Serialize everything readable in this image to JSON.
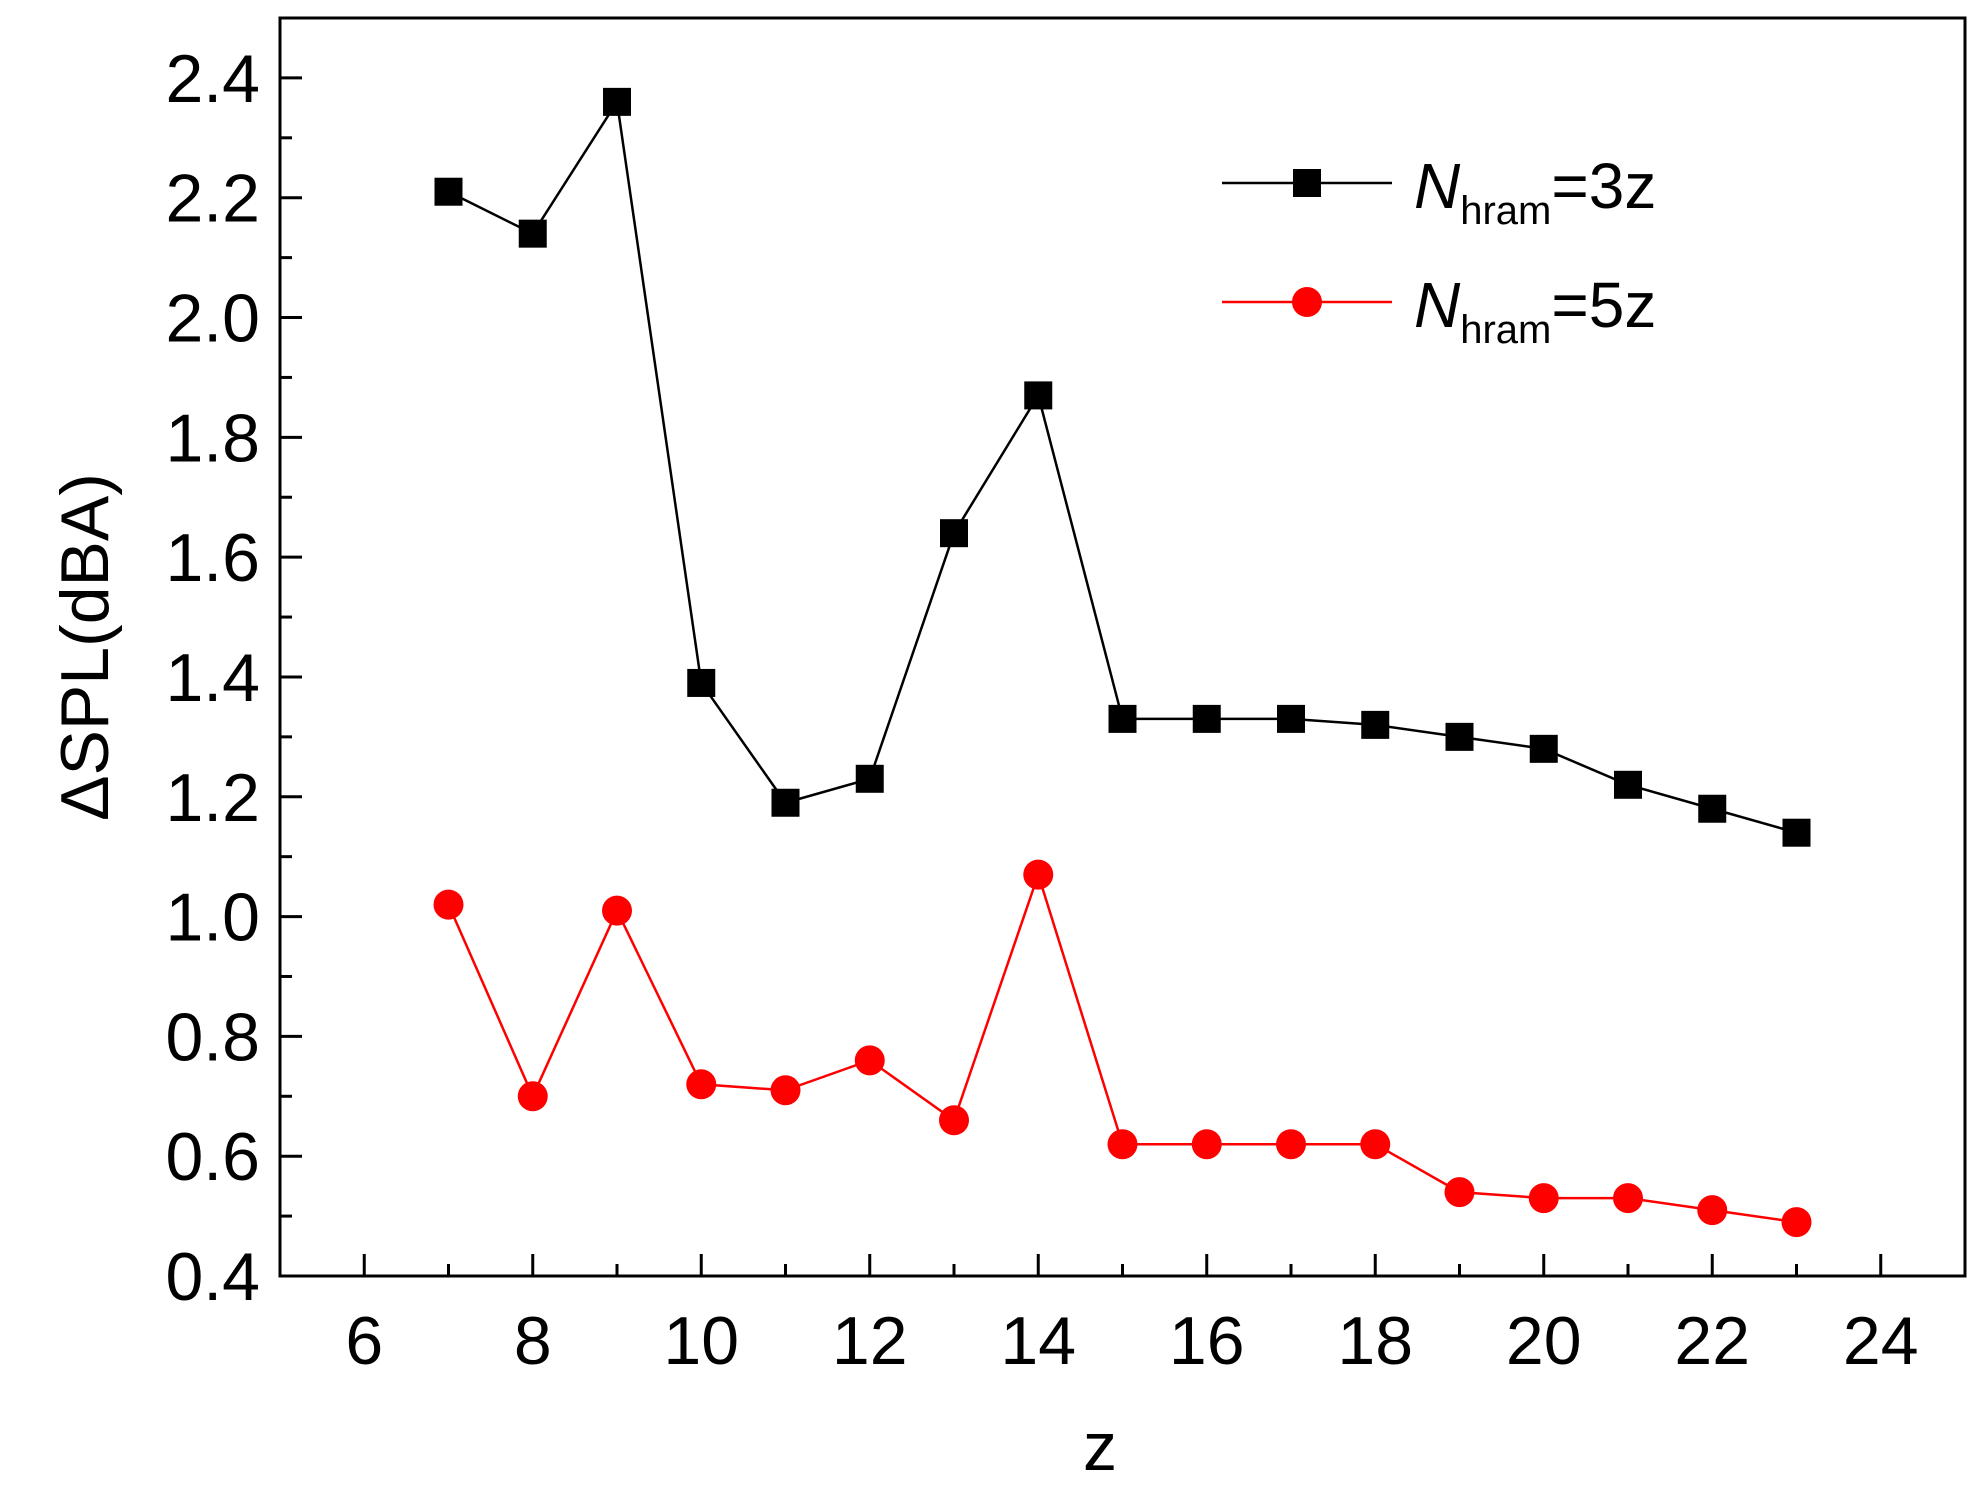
{
  "chart_data": {
    "type": "line",
    "xlabel": "z",
    "ylabel": "ΔSPL(dBA)",
    "xlim": [
      5,
      25
    ],
    "ylim": [
      0.4,
      2.5
    ],
    "xticks": [
      6,
      8,
      10,
      12,
      14,
      16,
      18,
      20,
      22,
      24
    ],
    "yticks": [
      0.4,
      0.6,
      0.8,
      1.0,
      1.2,
      1.4,
      1.6,
      1.8,
      2.0,
      2.2,
      2.4
    ],
    "xtick_labels": [
      "6",
      "8",
      "10",
      "12",
      "14",
      "16",
      "18",
      "20",
      "22",
      "24"
    ],
    "ytick_labels": [
      "0.4",
      "0.6",
      "0.8",
      "1.0",
      "1.2",
      "1.4",
      "1.6",
      "1.8",
      "2.0",
      "2.2",
      "2.4"
    ],
    "legend_position": "top-right",
    "x": [
      7,
      8,
      9,
      10,
      11,
      12,
      13,
      14,
      15,
      16,
      17,
      18,
      19,
      20,
      21,
      22,
      23
    ],
    "series": [
      {
        "name_main": "N",
        "name_sub": "hram",
        "name_suffix": "=3z",
        "color": "#000000",
        "marker": "square",
        "values": [
          2.21,
          2.14,
          2.36,
          1.39,
          1.19,
          1.23,
          1.64,
          1.87,
          1.33,
          1.33,
          1.33,
          1.32,
          1.3,
          1.28,
          1.22,
          1.18,
          1.14
        ]
      },
      {
        "name_main": "N",
        "name_sub": "hram",
        "name_suffix": "=5z",
        "color": "#ff0000",
        "marker": "circle",
        "values": [
          1.02,
          0.7,
          1.01,
          0.72,
          0.71,
          0.76,
          0.66,
          1.07,
          0.62,
          0.62,
          0.62,
          0.62,
          0.54,
          0.53,
          0.53,
          0.51,
          0.49
        ]
      }
    ]
  }
}
